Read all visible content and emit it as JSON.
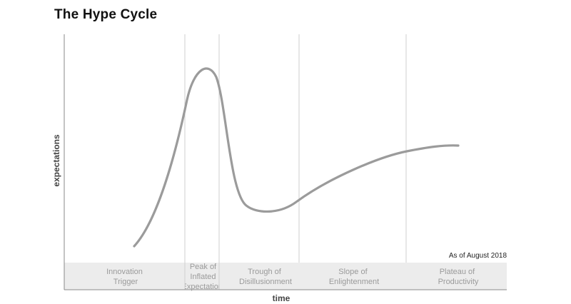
{
  "title": "The Hype Cycle",
  "axes": {
    "x_label": "time",
    "y_label": "expectations"
  },
  "note": "As of August 2018",
  "phases": [
    {
      "lines": [
        "Innovation",
        "Trigger"
      ]
    },
    {
      "lines": [
        "Peak of",
        "Inflated",
        "Expectations"
      ]
    },
    {
      "lines": [
        "Trough of",
        "Disillusionment"
      ]
    },
    {
      "lines": [
        "Slope of",
        "Enlightenment"
      ]
    },
    {
      "lines": [
        "Plateau of",
        "Productivity"
      ]
    }
  ],
  "colors": {
    "curve": "#9b9b9b",
    "band": "#ececec",
    "divider": "#cfcfcf",
    "axis": "#8a8a8a"
  }
}
